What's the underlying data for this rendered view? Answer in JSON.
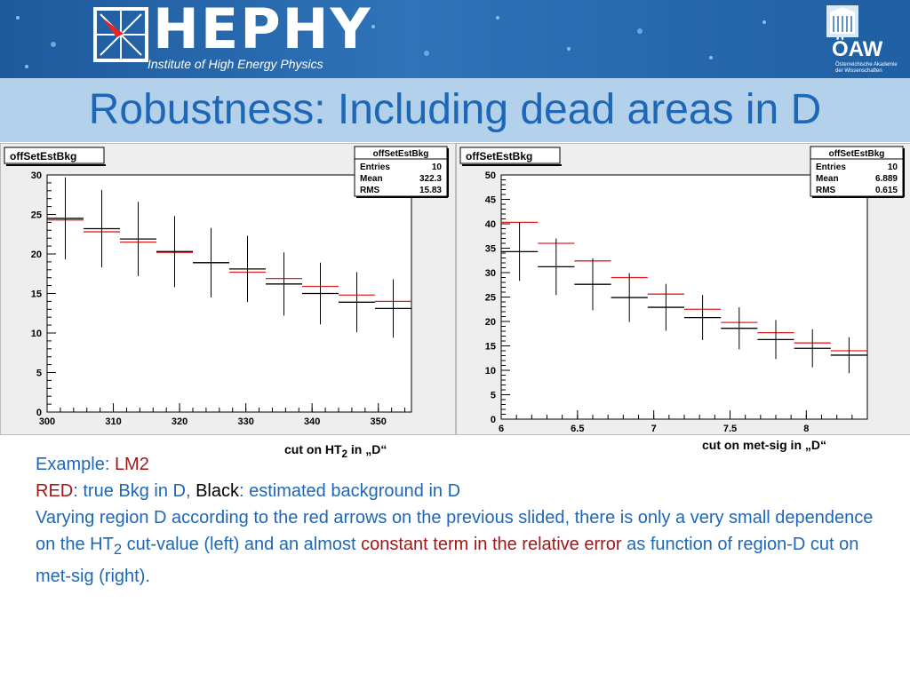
{
  "header": {
    "logo_text": "HEPHY",
    "logo_subtitle": "Institute of High Energy Physics",
    "oaw_text": "ÖAW",
    "oaw_subtitle": "Österreichische Akademie der Wissenschaften"
  },
  "title": "Robustness: Including dead areas in D",
  "captions": {
    "left": "cut on HT",
    "left_sub": "2",
    "left_end": " in „D“",
    "right": "cut on met-sig in „D“"
  },
  "text": {
    "line1_a": "Example: ",
    "line1_b": "LM2",
    "line2_a": "RED",
    "line2_b": ": true Bkg in D, ",
    "line2_c": "Black",
    "line2_d": ": estimated background in D",
    "para_a": "Varying region D according to the red arrows on the previous slided, there is only a very small dependence on the HT",
    "para_sub": "2",
    "para_b": " cut-value (left) and an almost ",
    "para_c": "constant term in the relative error",
    "para_d": " as  function of region-D cut on met-sig  (right)."
  },
  "colors": {
    "title": "#1e67b6",
    "red_series": "#e02020",
    "black_series": "#000000",
    "accent_red": "#a01818"
  },
  "chart_data": [
    {
      "type": "line",
      "hist_name": "offSetEstBkg",
      "stats": {
        "title": "offSetEstBkg",
        "rows": [
          [
            "Entries",
            "10"
          ],
          [
            "Mean",
            "322.3"
          ],
          [
            "RMS",
            "15.83"
          ]
        ]
      },
      "xlim": [
        300,
        355
      ],
      "ylim": [
        0,
        30
      ],
      "xticks": [
        300,
        310,
        320,
        330,
        340,
        350
      ],
      "yticks": [
        0,
        5,
        10,
        15,
        20,
        25,
        30
      ],
      "xlabel": "",
      "ylabel": "",
      "x": [
        302.75,
        308.25,
        313.75,
        319.25,
        324.75,
        330.25,
        335.75,
        341.25,
        346.75,
        352.25
      ],
      "bin_half_width": 2.75,
      "series": [
        {
          "color": "#e02020",
          "values": [
            24.3,
            22.8,
            21.5,
            20.2,
            18.9,
            17.7,
            16.9,
            15.9,
            14.8,
            14.0
          ]
        },
        {
          "color": "#000000",
          "values": [
            24.5,
            23.2,
            21.9,
            20.3,
            18.9,
            18.1,
            16.2,
            15.0,
            13.9,
            13.1
          ],
          "errors": [
            5.2,
            4.9,
            4.7,
            4.5,
            4.4,
            4.2,
            4.0,
            3.9,
            3.8,
            3.7
          ]
        }
      ]
    },
    {
      "type": "line",
      "hist_name": "offSetEstBkg",
      "stats": {
        "title": "offSetEstBkg",
        "rows": [
          [
            "Entries",
            "10"
          ],
          [
            "Mean",
            "6.889"
          ],
          [
            "RMS",
            "0.615"
          ]
        ]
      },
      "xlim": [
        6,
        8.4
      ],
      "ylim": [
        0,
        50
      ],
      "xticks": [
        6,
        6.5,
        7,
        7.5,
        8
      ],
      "yticks": [
        0,
        5,
        10,
        15,
        20,
        25,
        30,
        35,
        40,
        45,
        50
      ],
      "xlabel": "",
      "ylabel": "",
      "x": [
        6.12,
        6.36,
        6.6,
        6.84,
        7.08,
        7.32,
        7.56,
        7.8,
        8.04,
        8.28
      ],
      "bin_half_width": 0.12,
      "series": [
        {
          "color": "#e02020",
          "values": [
            40.3,
            36.0,
            32.4,
            29.0,
            25.6,
            22.5,
            19.8,
            17.7,
            15.6,
            14.0
          ]
        },
        {
          "color": "#000000",
          "values": [
            34.3,
            31.2,
            27.6,
            24.9,
            22.9,
            20.8,
            18.6,
            16.3,
            14.5,
            13.1
          ],
          "errors": [
            6.0,
            5.8,
            5.3,
            5.0,
            4.8,
            4.6,
            4.3,
            4.0,
            3.9,
            3.7
          ]
        }
      ]
    }
  ]
}
